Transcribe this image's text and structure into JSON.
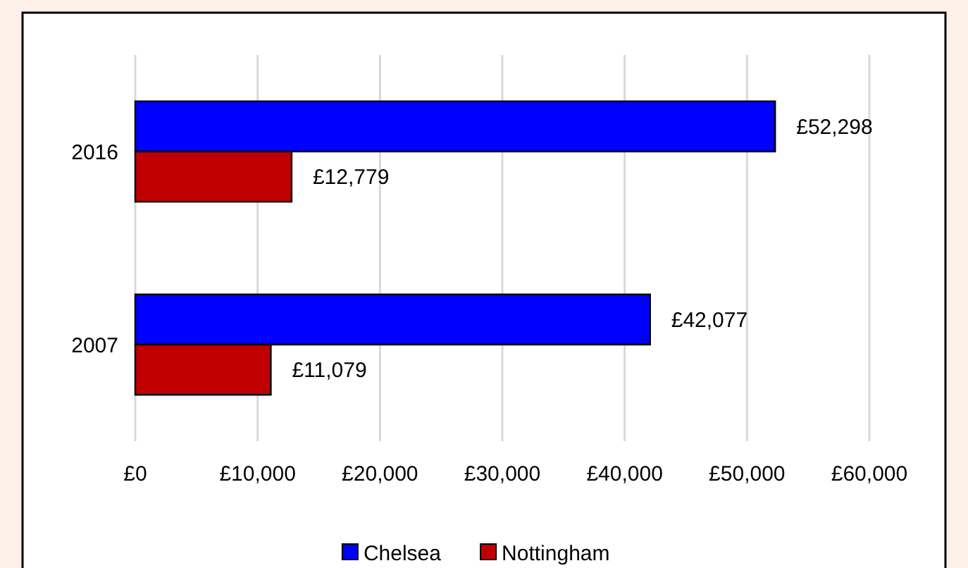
{
  "chart_data": {
    "type": "bar",
    "orientation": "horizontal",
    "categories": [
      "2016",
      "2007"
    ],
    "series": [
      {
        "name": "Chelsea",
        "color": "#0000ff",
        "values": [
          52298,
          42077
        ],
        "value_labels": [
          "£52,298",
          "£42,077"
        ]
      },
      {
        "name": "Nottingham",
        "color": "#c00000",
        "values": [
          12779,
          11079
        ],
        "value_labels": [
          "£12,779",
          "£11,079"
        ]
      }
    ],
    "xlim": [
      0,
      60000
    ],
    "xticks": [
      {
        "value": 0,
        "label": "£0"
      },
      {
        "value": 10000,
        "label": "£10,000"
      },
      {
        "value": 20000,
        "label": "£20,000"
      },
      {
        "value": 30000,
        "label": "£30,000"
      },
      {
        "value": 40000,
        "label": "£40,000"
      },
      {
        "value": 50000,
        "label": "£50,000"
      },
      {
        "value": 60000,
        "label": "£60,000"
      }
    ],
    "grid": "x",
    "legend": "bottom"
  }
}
